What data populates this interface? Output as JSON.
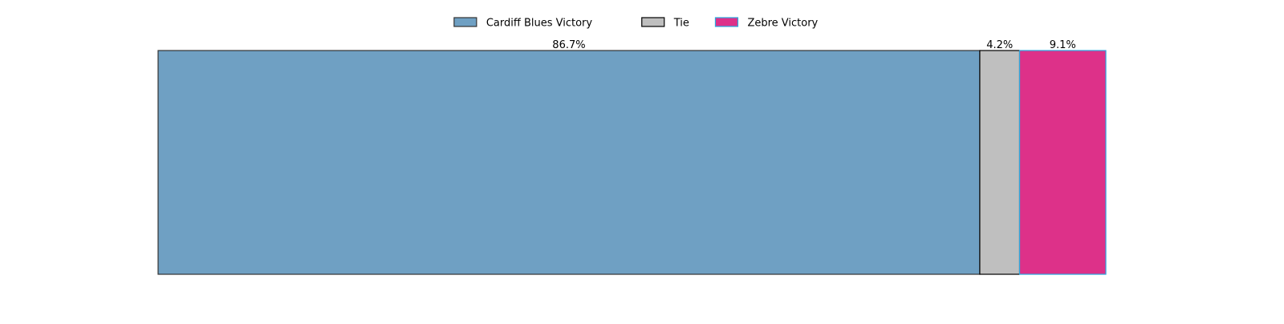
{
  "chart_data": {
    "type": "bar",
    "orientation": "horizontal-stacked",
    "title": "",
    "xlabel": "",
    "ylabel": "",
    "grid": false,
    "axes_visible": false,
    "legend_position": "top-center",
    "total": 100,
    "series": [
      {
        "name": "Cardiff Blues Victory",
        "value": 86.7,
        "label": "86.7%",
        "color": "#6fa0c3",
        "edge_color": "#333333"
      },
      {
        "name": "Tie",
        "value": 4.2,
        "label": "4.2%",
        "color": "#bfbfbf",
        "edge_color": "#000000"
      },
      {
        "name": "Zebre Victory",
        "value": 9.1,
        "label": "9.1%",
        "color": "#dd3189",
        "edge_color": "#2aa8e0"
      }
    ]
  }
}
